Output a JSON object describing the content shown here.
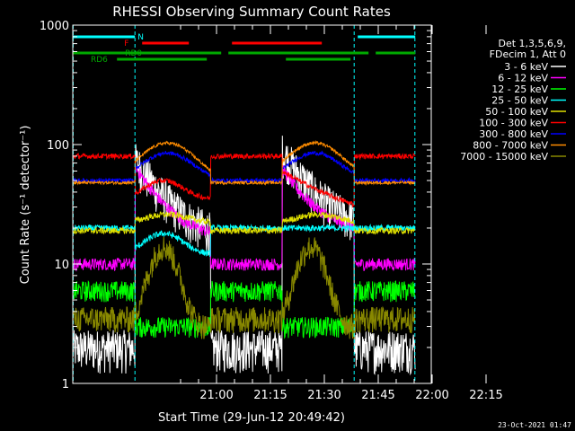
{
  "chart_data": {
    "type": "line",
    "title": "RHESSI Observing Summary Count Rates",
    "xlabel": "Start Time (29-Jun-12 20:49:42)",
    "ylabel": "Count Rate (s⁻¹ detector⁻¹)",
    "ylog": true,
    "ylim": [
      1,
      1000
    ],
    "xlim_minutes": [
      20.0,
      22.4
    ],
    "x_ticks": [
      "21:00",
      "21:15",
      "21:30",
      "21:45",
      "22:00",
      "22:15"
    ],
    "y_ticks": [
      "1",
      "10",
      "100",
      "1000"
    ],
    "legend_header": [
      "Det 1,3,5,6,9,",
      "FDecim 1, Att 0"
    ],
    "legend_position": "right",
    "timestamp": "23-Oct-2021 01:47",
    "bar_labels": [
      "N",
      "F",
      "RD0",
      "RD6"
    ],
    "colors": {
      "3 - 6 keV": "#ffffff",
      "6 - 12 keV": "#ff00ff",
      "12 - 25 keV": "#00ff00",
      "25 - 50 keV": "#00ffff",
      "50 - 100 keV": "#e0e000",
      "100 - 300 keV": "#ff0000",
      "300 - 800 keV": "#0000ff",
      "800 - 7000 keV": "#ff8c00",
      "7000 - 15000 keV": "#888800"
    },
    "series": [
      {
        "name": "3 - 6 keV",
        "color": "#ffffff"
      },
      {
        "name": "6 - 12 keV",
        "color": "#ff00ff"
      },
      {
        "name": "12 - 25 keV",
        "color": "#00ff00"
      },
      {
        "name": "25 - 50 keV",
        "color": "#00ffff"
      },
      {
        "name": "50 - 100 keV",
        "color": "#e0e000"
      },
      {
        "name": "100 - 300 keV",
        "color": "#ff0000"
      },
      {
        "name": "300 - 800 keV",
        "color": "#0000ff"
      },
      {
        "name": "800 - 7000 keV",
        "color": "#ff8c00"
      },
      {
        "name": "7000 - 15000 keV",
        "color": "#888800"
      }
    ]
  }
}
